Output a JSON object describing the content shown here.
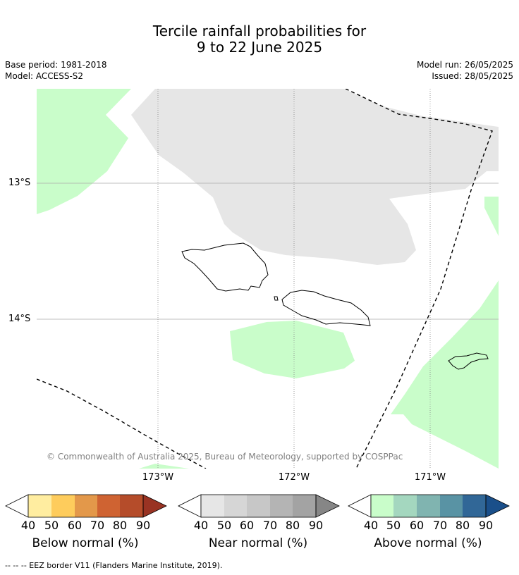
{
  "title_line1": "Tercile rainfall probabilities for",
  "title_line2": "9 to 22 June 2025",
  "meta": {
    "base_period": "Base period: 1981-2018",
    "model": "Model: ACCESS-S2",
    "model_run": "Model run: 26/05/2025",
    "issued": "Issued: 28/05/2025"
  },
  "map": {
    "lat_labels": [
      "13°S",
      "14°S"
    ],
    "lon_labels": [
      "173°W",
      "172°W",
      "171°W"
    ],
    "copyright": "© Commonwealth of Australia 2025, Bureau of Meteorology, supported by COSPPac",
    "colors": {
      "near_normal_40": "#e6e6e6",
      "above_normal_40": "#c9fdca",
      "eez": "#000000"
    }
  },
  "colorbars": [
    {
      "label": "Below normal (%)",
      "ticks": [
        "40",
        "50",
        "60",
        "70",
        "80",
        "90"
      ],
      "colors": [
        "#ffeda0",
        "#fecc5c",
        "#e3984a",
        "#cf6332",
        "#b54c2a",
        "#993323"
      ]
    },
    {
      "label": "Near normal (%)",
      "ticks": [
        "40",
        "50",
        "60",
        "70",
        "80",
        "90"
      ],
      "colors": [
        "#e6e6e6",
        "#d6d6d6",
        "#c7c7c7",
        "#b4b4b4",
        "#a3a3a3",
        "#868686"
      ]
    },
    {
      "label": "Above normal (%)",
      "ticks": [
        "40",
        "50",
        "60",
        "70",
        "80",
        "90"
      ],
      "colors": [
        "#c9fdca",
        "#a4d7bf",
        "#80b4b0",
        "#5993a4",
        "#316797",
        "#1a4f8a"
      ]
    }
  ],
  "footnote": "-- -- -- EEZ border V11 (Flanders Marine Institute, 2019)."
}
